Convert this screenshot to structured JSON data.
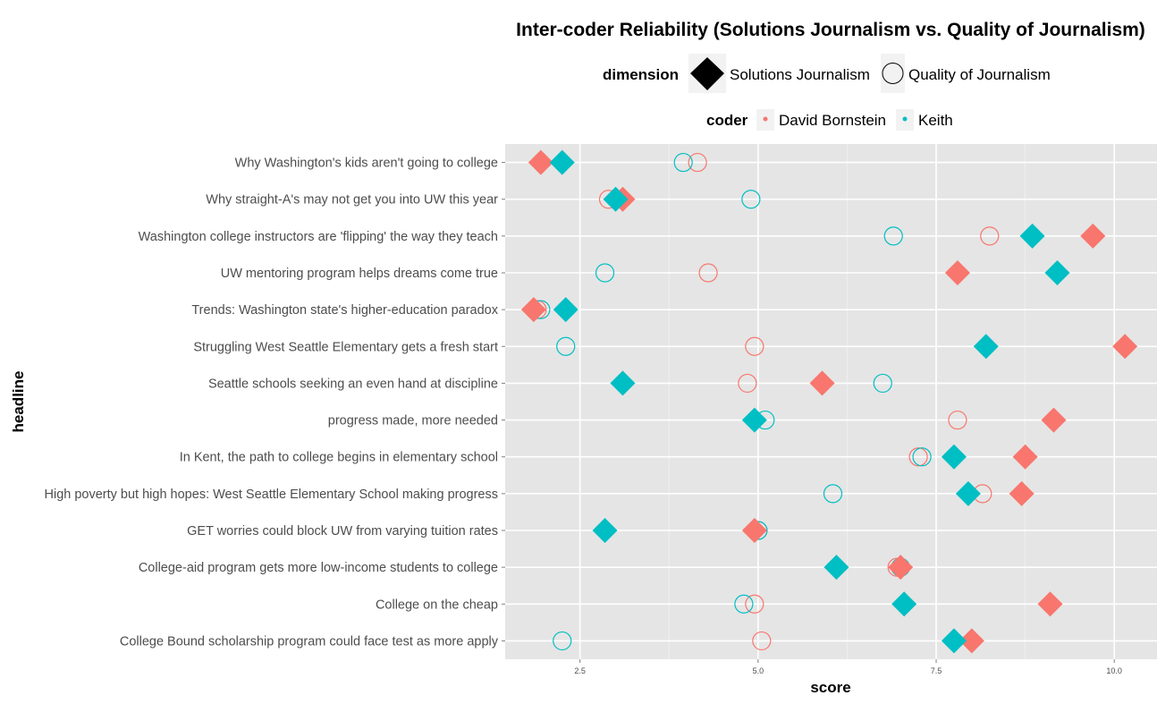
{
  "chart_data": {
    "type": "scatter",
    "title": "Inter-coder Reliability (Solutions Journalism vs. Quality of Journalism)",
    "xlabel": "score",
    "ylabel": "headline",
    "xlim": [
      1.45,
      10.6
    ],
    "xticks": [
      "2.5",
      "5.0",
      "7.5",
      "10.0"
    ],
    "xtick_values": [
      2.5,
      5.0,
      7.5,
      10.0
    ],
    "grid": true,
    "legend_position": "top",
    "legends": {
      "dimension": {
        "title": "dimension",
        "entries": [
          {
            "label": "Solutions Journalism",
            "shape": "diamond"
          },
          {
            "label": "Quality of Journalism",
            "shape": "circle"
          }
        ]
      },
      "coder": {
        "title": "coder",
        "entries": [
          {
            "label": "David Bornstein",
            "color": "#F8766D"
          },
          {
            "label": "Keith",
            "color": "#00BFC4"
          }
        ]
      }
    },
    "headlines": [
      "Why Washington's kids aren't going to college",
      "Why straight-A's may not get you into UW this year",
      "Washington college instructors are 'flipping' the way they teach",
      "UW mentoring program helps dreams come true",
      "Trends: Washington state's higher-education paradox",
      "Struggling West Seattle Elementary gets a fresh start",
      "Seattle schools seeking an even hand at discipline",
      "progress made, more needed",
      "In Kent, the path to college begins in elementary school",
      "High poverty but high hopes: West Seattle Elementary School making progress",
      "GET worries could block UW from varying tuition rates",
      "College-aid program gets more low-income students to college",
      "College on the cheap",
      "College Bound scholarship program could face test as more apply"
    ],
    "series": [
      {
        "coder": "David Bornstein",
        "dimension": "Solutions Journalism",
        "values": [
          1.95,
          3.1,
          9.7,
          7.8,
          1.85,
          10.15,
          5.9,
          9.15,
          8.75,
          8.7,
          4.95,
          7.0,
          9.1,
          8.0
        ]
      },
      {
        "coder": "Keith",
        "dimension": "Solutions Journalism",
        "values": [
          2.25,
          3.0,
          8.85,
          9.2,
          2.3,
          8.2,
          3.1,
          4.95,
          7.75,
          7.95,
          2.85,
          6.1,
          7.05,
          7.75
        ]
      },
      {
        "coder": "David Bornstein",
        "dimension": "Quality of Journalism",
        "values": [
          4.15,
          2.9,
          8.25,
          4.3,
          1.9,
          4.95,
          4.85,
          7.8,
          7.25,
          8.15,
          5.0,
          6.95,
          4.95,
          5.05
        ]
      },
      {
        "coder": "Keith",
        "dimension": "Quality of Journalism",
        "values": [
          3.95,
          4.9,
          6.9,
          2.85,
          1.95,
          2.3,
          6.75,
          5.1,
          7.3,
          6.05,
          5.0,
          7.0,
          4.8,
          2.25
        ]
      }
    ]
  }
}
